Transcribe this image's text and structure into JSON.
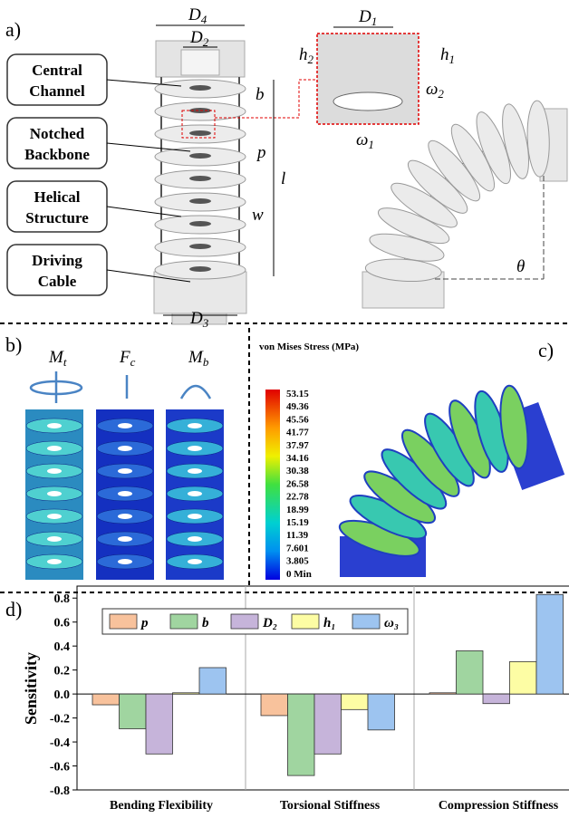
{
  "panels": {
    "a": "a)",
    "b": "b)",
    "c": "c)",
    "d": "d)"
  },
  "panel_a": {
    "components": [
      [
        "Central",
        "Channel"
      ],
      [
        "Notched",
        "Backbone"
      ],
      [
        "Helical",
        "Structure"
      ],
      [
        "Driving",
        "Cable"
      ]
    ],
    "dimensions": {
      "D4": {
        "base": "D",
        "sub": "4"
      },
      "D2": {
        "base": "D",
        "sub": "2"
      },
      "D1": {
        "base": "D",
        "sub": "1"
      },
      "h2": {
        "base": "h",
        "sub": "2"
      },
      "h1": {
        "base": "h",
        "sub": "1"
      },
      "b": "b",
      "w2": {
        "base": "ω",
        "sub": "2"
      },
      "p": "p",
      "l": "l",
      "w": "w",
      "w1": {
        "base": "ω",
        "sub": "1"
      },
      "D3": {
        "base": "D",
        "sub": "3"
      },
      "theta": "θ"
    }
  },
  "panel_b": {
    "loads": [
      {
        "base": "M",
        "sub": "t"
      },
      {
        "base": "F",
        "sub": "c"
      },
      {
        "base": "M",
        "sub": "b"
      }
    ]
  },
  "colorbar": {
    "title": "von Mises Stress (MPa)",
    "labels": [
      "53.15",
      "49.36",
      "45.56",
      "41.77",
      "37.97",
      "34.16",
      "30.38",
      "26.58",
      "22.78",
      "18.99",
      "15.19",
      "11.39",
      "7.601",
      "3.805",
      "0 Min"
    ]
  },
  "chart_data": {
    "type": "bar",
    "y_label": "Sensitivity",
    "categories": [
      "Bending Flexibility",
      "Torsional Stiffness",
      "Compression Stiffness"
    ],
    "series": [
      {
        "name": "p",
        "color": "#f8c29c",
        "values": [
          -0.09,
          -0.18,
          0.01
        ]
      },
      {
        "name": "b",
        "color": "#a0d5a0",
        "values": [
          -0.29,
          -0.68,
          0.36
        ]
      },
      {
        "name": "D₂",
        "color": "#c6b4da",
        "values": [
          -0.5,
          -0.5,
          -0.08
        ]
      },
      {
        "name": "h₁",
        "color": "#fdfda4",
        "values": [
          0.01,
          -0.13,
          0.27
        ]
      },
      {
        "name": "ω₃",
        "color": "#9dc4f0",
        "values": [
          0.22,
          -0.3,
          0.83
        ]
      }
    ],
    "ylim": [
      -0.8,
      0.9
    ],
    "yticks": [
      -0.8,
      -0.6,
      -0.4,
      -0.2,
      {
        "value": 0,
        "label": "0.0"
      },
      0.2,
      0.4,
      0.6,
      0.8
    ],
    "legend": "top-left"
  }
}
